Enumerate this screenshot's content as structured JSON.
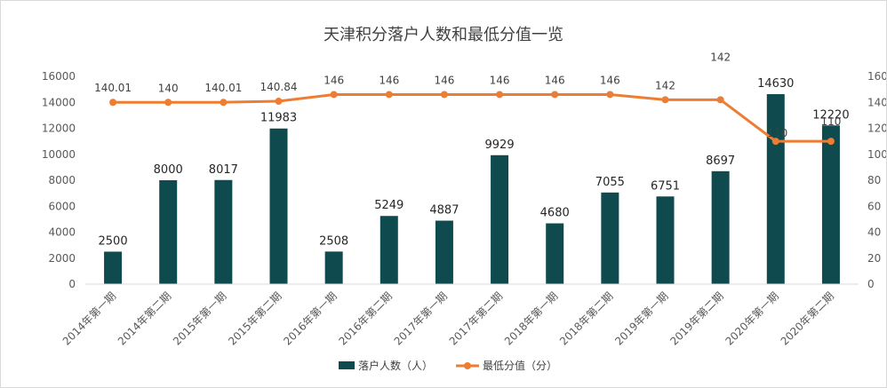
{
  "chart_data": {
    "type": "bar",
    "title": "天津积分落户人数和最低分值一览",
    "categories": [
      "2014年第一期",
      "2014年第二期",
      "2015年第一期",
      "2015年第二期",
      "2016年第一期",
      "2016年第二期",
      "2017年第一期",
      "2017年第二期",
      "2018年第一期",
      "2018年第二期",
      "2019年第一期",
      "2019年第二期",
      "2020年第一期",
      "2020年第二期"
    ],
    "series": [
      {
        "name": "落户人数（人）",
        "type": "bar",
        "axis": "left",
        "color": "#0e4a4e",
        "values": [
          2500,
          8000,
          8017,
          11983,
          2508,
          5249,
          4887,
          9929,
          4680,
          7055,
          6751,
          8697,
          14630,
          12220
        ],
        "labels": [
          "2500",
          "8000",
          "8017",
          "11983",
          "2508",
          "5249",
          "4887",
          "9929",
          "4680",
          "7055",
          "6751",
          "8697",
          "14630",
          "12220"
        ]
      },
      {
        "name": "最低分值（分）",
        "type": "line",
        "axis": "right",
        "color": "#ed7d31",
        "values": [
          140.01,
          140,
          140.01,
          140.84,
          146,
          146,
          146,
          146,
          146,
          146,
          142,
          142,
          110,
          110
        ],
        "labels": [
          "140.01",
          "140",
          "140.01",
          "140.84",
          "146",
          "146",
          "146",
          "146",
          "146",
          "146",
          "142",
          "142",
          "110",
          "110"
        ]
      }
    ],
    "ylim_left": [
      0,
      16000
    ],
    "yticks_left": [
      "0",
      "2000",
      "4000",
      "6000",
      "8000",
      "10000",
      "12000",
      "14000",
      "16000"
    ],
    "ylim_right": [
      0,
      160
    ],
    "yticks_right": [
      "0",
      "20",
      "40",
      "60",
      "80",
      "100",
      "120",
      "140",
      "160"
    ],
    "grid": false,
    "legend_position": "bottom"
  }
}
